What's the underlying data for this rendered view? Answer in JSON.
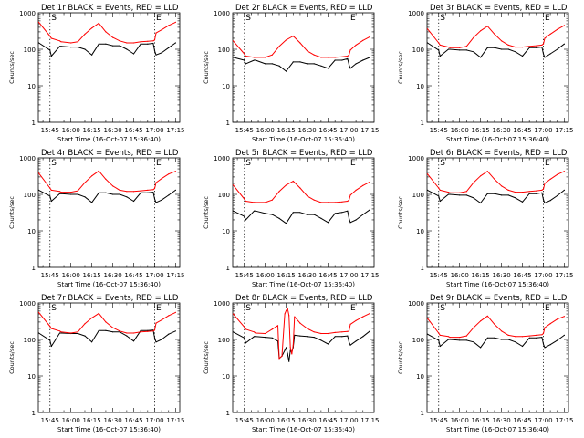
{
  "colors": {
    "events": "#000000",
    "lld": "#ff0000",
    "axis": "#000000",
    "background": "#ffffff"
  },
  "chart_data": [
    {
      "type": "line",
      "title": "Det 1r BLACK = Events, RED = LLD",
      "xlabel": "Start Time (16-Oct-07 15:36:40)",
      "ylabel": "Counts/sec",
      "yscale": "log",
      "ylim": [
        1,
        1000
      ],
      "yticks": [
        "1",
        "10",
        "100",
        "1000"
      ],
      "xticks": [
        "15:45",
        "16:00",
        "16:15",
        "16:30",
        "16:45",
        "17:00",
        "17:15"
      ],
      "markers": [
        "15:45",
        "17:00"
      ],
      "marker_labels": [
        "S",
        "E"
      ],
      "x": [
        "15:37",
        "15:45",
        "15:46",
        "15:52",
        "15:53",
        "16:00",
        "16:05",
        "16:10",
        "16:15",
        "16:20",
        "16:25",
        "16:30",
        "16:35",
        "16:40",
        "16:45",
        "16:50",
        "16:55",
        "16:59",
        "17:00",
        "17:01",
        "17:05",
        "17:10",
        "17:15"
      ],
      "series": [
        {
          "name": "Events",
          "values": [
            150,
            95,
            65,
            120,
            120,
            115,
            115,
            100,
            70,
            140,
            140,
            125,
            125,
            100,
            75,
            140,
            140,
            145,
            90,
            70,
            80,
            110,
            150
          ]
        },
        {
          "name": "LLD",
          "values": [
            550,
            230,
            200,
            170,
            160,
            150,
            160,
            260,
            380,
            520,
            300,
            210,
            170,
            150,
            150,
            160,
            165,
            170,
            180,
            280,
            340,
            450,
            550
          ]
        }
      ]
    },
    {
      "type": "line",
      "title": "Det 2r BLACK = Events, RED = LLD",
      "xlabel": "Start Time (16-Oct-07 15:36:40)",
      "ylabel": "Counts/sec",
      "yscale": "log",
      "ylim": [
        1,
        1000
      ],
      "yticks": [
        "1",
        "10",
        "100",
        "1000"
      ],
      "xticks": [
        "15:45",
        "16:00",
        "16:15",
        "16:30",
        "16:45",
        "17:00",
        "17:15"
      ],
      "markers": [
        "15:45",
        "17:00"
      ],
      "marker_labels": [
        "S",
        "E"
      ],
      "x": [
        "15:37",
        "15:45",
        "15:46",
        "15:52",
        "15:53",
        "16:00",
        "16:05",
        "16:10",
        "16:15",
        "16:20",
        "16:25",
        "16:30",
        "16:35",
        "16:40",
        "16:45",
        "16:50",
        "16:55",
        "16:59",
        "17:00",
        "17:01",
        "17:05",
        "17:10",
        "17:15"
      ],
      "series": [
        {
          "name": "Events",
          "values": [
            60,
            50,
            40,
            50,
            50,
            40,
            40,
            35,
            25,
            45,
            45,
            40,
            40,
            35,
            30,
            50,
            50,
            55,
            38,
            30,
            40,
            50,
            60
          ]
        },
        {
          "name": "LLD",
          "values": [
            170,
            75,
            65,
            60,
            60,
            60,
            70,
            120,
            180,
            230,
            150,
            90,
            70,
            60,
            60,
            60,
            62,
            65,
            70,
            95,
            130,
            175,
            220
          ]
        }
      ]
    },
    {
      "type": "line",
      "title": "Det 3r BLACK = Events, RED = LLD",
      "xlabel": "Start Time (16-Oct-07 15:36:40)",
      "ylabel": "Counts/sec",
      "yscale": "log",
      "ylim": [
        1,
        1000
      ],
      "yticks": [
        "1",
        "10",
        "100",
        "1000"
      ],
      "xticks": [
        "15:45",
        "16:00",
        "16:15",
        "16:30",
        "16:45",
        "17:00",
        "17:15"
      ],
      "markers": [
        "15:45",
        "17:00"
      ],
      "marker_labels": [
        "S",
        "E"
      ],
      "x": [
        "15:37",
        "15:45",
        "15:46",
        "15:52",
        "15:53",
        "16:00",
        "16:05",
        "16:10",
        "16:15",
        "16:20",
        "16:25",
        "16:30",
        "16:35",
        "16:40",
        "16:45",
        "16:50",
        "16:55",
        "16:59",
        "17:00",
        "17:01",
        "17:05",
        "17:10",
        "17:15"
      ],
      "series": [
        {
          "name": "Events",
          "values": [
            150,
            95,
            65,
            100,
            100,
            95,
            95,
            85,
            60,
            110,
            110,
            100,
            100,
            85,
            65,
            110,
            110,
            115,
            75,
            60,
            75,
            100,
            140
          ]
        },
        {
          "name": "LLD",
          "values": [
            360,
            150,
            130,
            115,
            110,
            110,
            120,
            210,
            320,
            430,
            260,
            170,
            130,
            115,
            115,
            120,
            125,
            130,
            140,
            200,
            260,
            350,
            450
          ]
        }
      ]
    },
    {
      "type": "line",
      "title": "Det 4r BLACK = Events, RED = LLD",
      "xlabel": "Start Time (16-Oct-07 15:36:40)",
      "ylabel": "Counts/sec",
      "yscale": "log",
      "ylim": [
        1,
        1000
      ],
      "yticks": [
        "1",
        "10",
        "100",
        "1000"
      ],
      "xticks": [
        "15:45",
        "16:00",
        "16:15",
        "16:30",
        "16:45",
        "17:00",
        "17:15"
      ],
      "markers": [
        "15:45",
        "17:00"
      ],
      "marker_labels": [
        "S",
        "E"
      ],
      "x": [
        "15:37",
        "15:45",
        "15:46",
        "15:52",
        "15:53",
        "16:00",
        "16:05",
        "16:10",
        "16:15",
        "16:20",
        "16:25",
        "16:30",
        "16:35",
        "16:40",
        "16:45",
        "16:50",
        "16:55",
        "16:59",
        "17:00",
        "17:01",
        "17:05",
        "17:10",
        "17:15"
      ],
      "series": [
        {
          "name": "Events",
          "values": [
            130,
            90,
            65,
            105,
            105,
            100,
            100,
            85,
            60,
            110,
            110,
            100,
            100,
            85,
            65,
            110,
            110,
            115,
            75,
            60,
            70,
            95,
            130
          ]
        },
        {
          "name": "LLD",
          "values": [
            380,
            150,
            130,
            120,
            115,
            115,
            125,
            210,
            320,
            440,
            260,
            170,
            130,
            120,
            120,
            125,
            130,
            135,
            145,
            210,
            270,
            360,
            430
          ]
        }
      ]
    },
    {
      "type": "line",
      "title": "Det 5r BLACK = Events, RED = LLD",
      "xlabel": "Start Time (16-Oct-07 15:36:40)",
      "ylabel": "Counts/sec",
      "yscale": "log",
      "ylim": [
        1,
        1000
      ],
      "yticks": [
        "1",
        "10",
        "100",
        "1000"
      ],
      "xticks": [
        "15:45",
        "16:00",
        "16:15",
        "16:30",
        "16:45",
        "17:00",
        "17:15"
      ],
      "markers": [
        "15:45",
        "17:00"
      ],
      "marker_labels": [
        "S",
        "E"
      ],
      "x": [
        "15:37",
        "15:45",
        "15:46",
        "15:52",
        "15:53",
        "16:00",
        "16:05",
        "16:10",
        "16:15",
        "16:20",
        "16:25",
        "16:30",
        "16:35",
        "16:40",
        "16:45",
        "16:50",
        "16:55",
        "16:59",
        "17:00",
        "17:01",
        "17:05",
        "17:10",
        "17:15"
      ],
      "series": [
        {
          "name": "Events",
          "values": [
            35,
            25,
            20,
            35,
            35,
            30,
            28,
            22,
            16,
            32,
            32,
            28,
            28,
            22,
            17,
            30,
            32,
            35,
            22,
            17,
            20,
            28,
            38
          ]
        },
        {
          "name": "LLD",
          "values": [
            180,
            75,
            65,
            60,
            60,
            60,
            70,
            120,
            180,
            230,
            150,
            90,
            70,
            60,
            60,
            60,
            62,
            65,
            70,
            95,
            130,
            175,
            220
          ]
        }
      ]
    },
    {
      "type": "line",
      "title": "Det 6r BLACK = Events, RED = LLD",
      "xlabel": "Start Time (16-Oct-07 15:36:40)",
      "ylabel": "Counts/sec",
      "yscale": "log",
      "ylim": [
        1,
        1000
      ],
      "yticks": [
        "1",
        "10",
        "100",
        "1000"
      ],
      "xticks": [
        "15:45",
        "16:00",
        "16:15",
        "16:30",
        "16:45",
        "17:00",
        "17:15"
      ],
      "markers": [
        "15:45",
        "17:00"
      ],
      "marker_labels": [
        "S",
        "E"
      ],
      "x": [
        "15:37",
        "15:45",
        "15:46",
        "15:52",
        "15:53",
        "16:00",
        "16:05",
        "16:10",
        "16:15",
        "16:20",
        "16:25",
        "16:30",
        "16:35",
        "16:40",
        "16:45",
        "16:50",
        "16:55",
        "16:59",
        "17:00",
        "17:01",
        "17:05",
        "17:10",
        "17:15"
      ],
      "series": [
        {
          "name": "Events",
          "values": [
            130,
            90,
            65,
            100,
            100,
            95,
            95,
            80,
            58,
            105,
            105,
            95,
            95,
            80,
            62,
            105,
            105,
            110,
            72,
            58,
            68,
            92,
            130
          ]
        },
        {
          "name": "LLD",
          "values": [
            360,
            150,
            130,
            115,
            110,
            110,
            120,
            210,
            320,
            430,
            260,
            170,
            130,
            115,
            115,
            120,
            125,
            130,
            140,
            200,
            260,
            350,
            430
          ]
        }
      ]
    },
    {
      "type": "line",
      "title": "Det 7r BLACK = Events, RED = LLD",
      "xlabel": "Start Time (16-Oct-07 15:36:40)",
      "ylabel": "Counts/sec",
      "yscale": "log",
      "ylim": [
        1,
        1000
      ],
      "yticks": [
        "1",
        "10",
        "100",
        "1000"
      ],
      "xticks": [
        "15:45",
        "16:00",
        "16:15",
        "16:30",
        "16:45",
        "17:00",
        "17:15"
      ],
      "markers": [
        "15:45",
        "17:00"
      ],
      "marker_labels": [
        "S",
        "E"
      ],
      "x": [
        "15:37",
        "15:45",
        "15:46",
        "15:52",
        "15:53",
        "16:00",
        "16:05",
        "16:10",
        "16:15",
        "16:20",
        "16:25",
        "16:30",
        "16:35",
        "16:40",
        "16:45",
        "16:50",
        "16:55",
        "16:59",
        "17:00",
        "17:01",
        "17:05",
        "17:10",
        "17:15"
      ],
      "series": [
        {
          "name": "Events",
          "values": [
            150,
            95,
            65,
            150,
            150,
            145,
            145,
            125,
            85,
            175,
            175,
            160,
            160,
            125,
            90,
            175,
            175,
            180,
            110,
            85,
            100,
            140,
            170
          ]
        },
        {
          "name": "LLD",
          "values": [
            550,
            230,
            200,
            170,
            160,
            150,
            160,
            270,
            390,
            520,
            300,
            210,
            170,
            150,
            150,
            160,
            165,
            170,
            180,
            280,
            340,
            450,
            550
          ]
        }
      ]
    },
    {
      "type": "line",
      "title": "Det 8r BLACK = Events, RED = LLD",
      "xlabel": "Start Time (16-Oct-07 15:36:40)",
      "ylabel": "Counts/sec",
      "yscale": "log",
      "ylim": [
        1,
        1000
      ],
      "yticks": [
        "1",
        "10",
        "100",
        "1000"
      ],
      "xticks": [
        "15:45",
        "16:00",
        "16:15",
        "16:30",
        "16:45",
        "17:00",
        "17:15"
      ],
      "markers": [
        "15:45",
        "17:00"
      ],
      "marker_labels": [
        "S",
        "E"
      ],
      "x": [
        "15:37",
        "15:45",
        "15:46",
        "15:52",
        "15:53",
        "16:00",
        "16:05",
        "16:09",
        "16:10",
        "16:12",
        "16:14",
        "16:15",
        "16:16",
        "16:17",
        "16:18",
        "16:19",
        "16:20",
        "16:21",
        "16:25",
        "16:30",
        "16:35",
        "16:40",
        "16:45",
        "16:50",
        "16:55",
        "16:59",
        "17:00",
        "17:01",
        "17:05",
        "17:10",
        "17:15"
      ],
      "series": [
        {
          "name": "Events",
          "values": [
            160,
            110,
            80,
            120,
            120,
            115,
            110,
            90,
            30,
            35,
            50,
            60,
            40,
            25,
            50,
            45,
            60,
            130,
            125,
            120,
            115,
            95,
            75,
            120,
            120,
            125,
            85,
            70,
            90,
            120,
            170
          ]
        },
        {
          "name": "LLD",
          "values": [
            500,
            220,
            190,
            160,
            150,
            145,
            190,
            240,
            30,
            35,
            500,
            620,
            700,
            450,
            60,
            40,
            70,
            420,
            280,
            200,
            160,
            145,
            145,
            155,
            160,
            165,
            170,
            260,
            330,
            420,
            520
          ]
        }
      ]
    },
    {
      "type": "line",
      "title": "Det 9r BLACK = Events, RED = LLD",
      "xlabel": "Start Time (16-Oct-07 15:36:40)",
      "ylabel": "Counts/sec",
      "yscale": "log",
      "ylim": [
        1,
        1000
      ],
      "yticks": [
        "1",
        "10",
        "100",
        "1000"
      ],
      "xticks": [
        "15:45",
        "16:00",
        "16:15",
        "16:30",
        "16:45",
        "17:00",
        "17:15"
      ],
      "markers": [
        "15:45",
        "17:00"
      ],
      "marker_labels": [
        "S",
        "E"
      ],
      "x": [
        "15:37",
        "15:45",
        "15:46",
        "15:52",
        "15:53",
        "16:00",
        "16:05",
        "16:10",
        "16:15",
        "16:20",
        "16:25",
        "16:30",
        "16:35",
        "16:40",
        "16:45",
        "16:50",
        "16:55",
        "16:59",
        "17:00",
        "17:01",
        "17:05",
        "17:10",
        "17:15"
      ],
      "series": [
        {
          "name": "Events",
          "values": [
            140,
            95,
            65,
            100,
            100,
            95,
            95,
            85,
            60,
            110,
            110,
            100,
            100,
            85,
            65,
            110,
            110,
            115,
            75,
            60,
            72,
            95,
            130
          ]
        },
        {
          "name": "LLD",
          "values": [
            380,
            150,
            130,
            120,
            115,
            115,
            125,
            210,
            320,
            440,
            260,
            170,
            130,
            120,
            120,
            125,
            130,
            135,
            145,
            210,
            270,
            360,
            430
          ]
        }
      ]
    }
  ]
}
